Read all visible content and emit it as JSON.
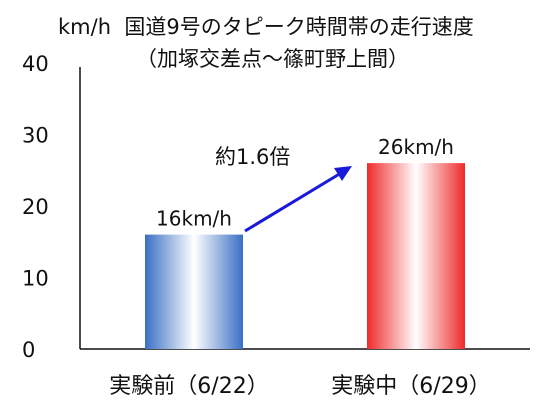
{
  "chart_data": {
    "type": "bar",
    "unit_label": "km/h",
    "title": "国道9号のタピーク時間帯の走行速度",
    "subtitle": "（加塚交差点～篠町野上間）",
    "categories": [
      "実験前（6/22）",
      "実験中（6/29）"
    ],
    "values": [
      16,
      26
    ],
    "value_labels": [
      "16km/h",
      "26km/h"
    ],
    "bar_colors": [
      "#3a6fc4",
      "#ee2a2a"
    ],
    "ylim": [
      0,
      40
    ],
    "yticks": [
      0,
      10,
      20,
      30,
      40
    ],
    "grid": false,
    "annotation": {
      "text": "約1.6倍",
      "color": "#1a1adc"
    }
  }
}
